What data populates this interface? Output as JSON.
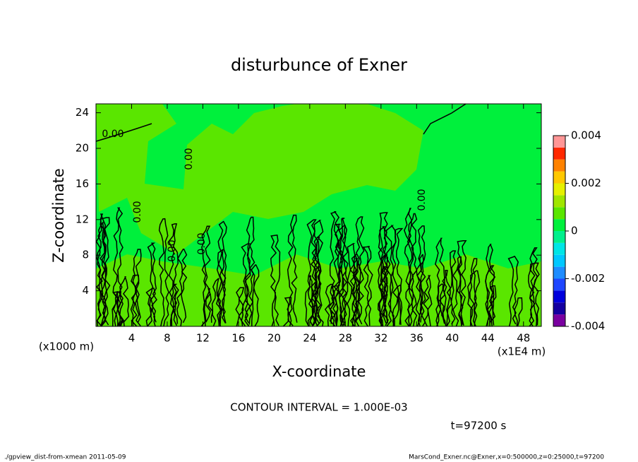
{
  "chart_data": {
    "type": "contour",
    "title": "disturbunce of Exner",
    "x_label": "X-coordinate",
    "y_label": "Z-coordinate",
    "x_unit": "(x1E4 m)",
    "y_unit": "(x1000 m)",
    "xlim": [
      0,
      50
    ],
    "xticks": [
      4,
      8,
      12,
      16,
      20,
      24,
      28,
      32,
      36,
      40,
      44,
      48
    ],
    "ylim": [
      0,
      25
    ],
    "yticks": [
      4,
      8,
      12,
      16,
      20,
      24
    ],
    "contour_labels": [
      "0.00",
      "0.00",
      "0.00",
      "0.00",
      "0.00",
      "0.00"
    ],
    "colorbar": {
      "bounds": [
        -0.004,
        -0.0035,
        -0.003,
        -0.0025,
        -0.002,
        -0.0015,
        -0.001,
        -0.0005,
        0,
        0.0005,
        0.001,
        0.0015,
        0.002,
        0.0025,
        0.003,
        0.0035,
        0.004
      ],
      "colors": [
        "#7a00a0",
        "#1400a0",
        "#0000dc",
        "#1e46ff",
        "#1e8cff",
        "#00c8ff",
        "#00e6e6",
        "#00f08c",
        "#00f03c",
        "#5ae600",
        "#a0e600",
        "#e6f000",
        "#ffc800",
        "#ff8200",
        "#ff2800",
        "#ff9696"
      ],
      "ticks": [
        -0.004,
        -0.002,
        0,
        0.002,
        0.004
      ]
    },
    "annotation": "CONTOUR INTERVAL = 1.000E-03",
    "time_label": "t=97200 s",
    "footer_left": "./gpview_dist-from-xmean  2011-05-09",
    "footer_right": "MarsCond_Exner.nc@Exner,x=0:500000,z=0:25000,t=97200"
  }
}
